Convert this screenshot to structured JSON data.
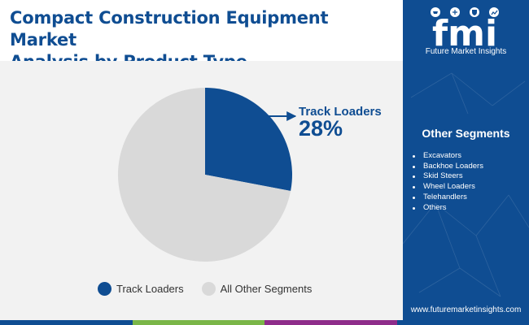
{
  "title": {
    "line1": "Compact Construction Equipment Market",
    "line2": "Analysis by Product Type"
  },
  "colors": {
    "brand_blue": "#0f4d92",
    "other_segments_gray": "#d9d9d9",
    "panel_background": "#f2f2f2",
    "bottom_bar": [
      "#0f4d92",
      "#7ab648",
      "#8e2c8a",
      "#0f4d92"
    ]
  },
  "chart_data": {
    "type": "pie",
    "slices": [
      {
        "label": "Track Loaders",
        "value": 28,
        "color": "#0f4d92"
      },
      {
        "label": "All Other Segments",
        "value": 72,
        "color": "#d9d9d9"
      }
    ],
    "callout": {
      "label": "Track Loaders",
      "value_text": "28%"
    },
    "legend_position": "bottom"
  },
  "sidebar": {
    "logo_text": "fmi",
    "logo_caption": "Future Market Insights",
    "logo_icons": [
      "cart-icon",
      "globe-icon",
      "shield-icon",
      "chart-icon"
    ],
    "other_segments_title": "Other Segments",
    "other_segments": [
      "Excavators",
      "Backhoe Loaders",
      "Skid Steers",
      "Wheel Loaders",
      "Telehandlers",
      "Others"
    ],
    "website": "www.futuremarketinsights.com"
  }
}
